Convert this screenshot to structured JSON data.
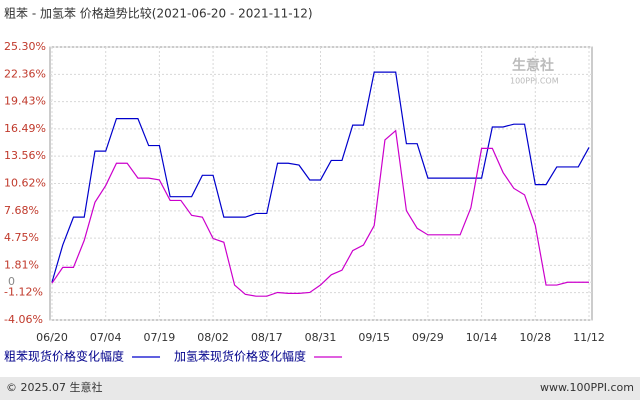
{
  "chart_data": {
    "type": "line",
    "title": "粗苯 - 加氢苯 价格趋势比较(2021-06-20 - 2021-11-12)",
    "watermark": "生意社",
    "watermark_sub": "100PPI.COM",
    "footer_left": "© 2025.07 生意社",
    "footer_right": "www.100PPI.com",
    "categories": [
      "06/20",
      null,
      null,
      null,
      null,
      "07/04",
      null,
      null,
      null,
      null,
      "07/19",
      null,
      null,
      null,
      null,
      "08/02",
      null,
      null,
      null,
      null,
      "08/17",
      null,
      null,
      null,
      null,
      "08/31",
      null,
      null,
      null,
      null,
      "09/15",
      null,
      null,
      null,
      null,
      "09/29",
      null,
      null,
      null,
      null,
      "10/14",
      null,
      null,
      null,
      null,
      "10/28",
      null,
      null,
      null,
      null,
      "11/12"
    ],
    "series": [
      {
        "name": "粗苯现货价格变化幅度",
        "color": "#0000cc",
        "values": [
          0,
          4.0,
          7.0,
          7.0,
          14.1,
          14.1,
          17.6,
          17.6,
          17.6,
          14.7,
          14.7,
          9.2,
          9.2,
          9.2,
          11.5,
          11.5,
          7.0,
          7.0,
          7.0,
          7.4,
          7.4,
          12.8,
          12.8,
          12.6,
          11.0,
          11.0,
          13.1,
          13.1,
          16.9,
          16.9,
          22.6,
          22.6,
          22.6,
          14.9,
          14.9,
          11.2,
          11.2,
          11.2,
          11.2,
          11.2,
          11.2,
          16.7,
          16.7,
          17.0,
          17.0,
          10.5,
          10.5,
          12.4,
          12.4,
          12.4,
          14.5
        ]
      },
      {
        "name": "加氢苯现货价格变化幅度",
        "color": "#cc00cc",
        "values": [
          -0.1,
          1.6,
          1.6,
          4.5,
          8.6,
          10.4,
          12.8,
          12.8,
          11.2,
          11.2,
          11.0,
          8.8,
          8.8,
          7.2,
          7.0,
          4.7,
          4.3,
          -0.3,
          -1.3,
          -1.5,
          -1.5,
          -1.1,
          -1.2,
          -1.2,
          -1.1,
          -0.3,
          0.8,
          1.3,
          3.4,
          4.0,
          6.1,
          15.3,
          16.3,
          7.7,
          5.8,
          5.1,
          5.1,
          5.1,
          5.1,
          8.0,
          14.4,
          14.4,
          11.8,
          10.1,
          9.4,
          6.1,
          -0.3,
          -0.3,
          0,
          0,
          0
        ]
      }
    ],
    "ylim": [
      -4.06,
      25.3
    ],
    "yticks": [
      {
        "value": -4.06,
        "label": "-4.06%"
      },
      {
        "value": -1.12,
        "label": "-1.12%"
      },
      0,
      {
        "value": 1.81,
        "label": "1.81%"
      },
      {
        "value": 4.75,
        "label": "4.75%"
      },
      {
        "value": 7.68,
        "label": "7.68%"
      },
      {
        "value": 10.62,
        "label": "10.62%"
      },
      {
        "value": 13.56,
        "label": "13.56%"
      },
      {
        "value": 16.49,
        "label": "16.49%"
      },
      {
        "value": 19.43,
        "label": "19.43%"
      },
      {
        "value": 22.36,
        "label": "22.36%"
      },
      {
        "value": 25.3,
        "label": "25.30%"
      }
    ],
    "grid": true
  }
}
